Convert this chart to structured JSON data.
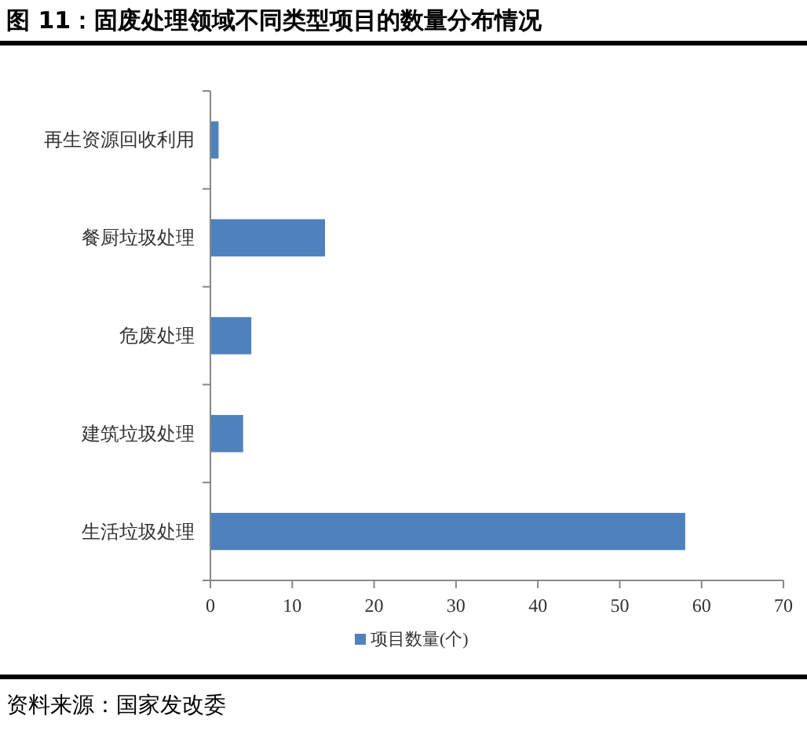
{
  "chart_data": {
    "type": "bar",
    "orientation": "horizontal",
    "title": "图 11：固废处理领域不同类型项目的数量分布情况",
    "categories": [
      "再生资源回收利用",
      "餐厨垃圾处理",
      "危废处理",
      "建筑垃圾处理",
      "生活垃圾处理"
    ],
    "series": [
      {
        "name": "项目数量(个)",
        "color": "#4f81bd",
        "values": [
          1,
          14,
          5,
          4,
          58
        ]
      }
    ],
    "xlim": [
      0,
      70
    ],
    "xticks": [
      0,
      10,
      20,
      30,
      40,
      50,
      60,
      70
    ],
    "grid": false,
    "legend": "bottom",
    "annotations": [
      "资料来源：国家发改委"
    ]
  }
}
